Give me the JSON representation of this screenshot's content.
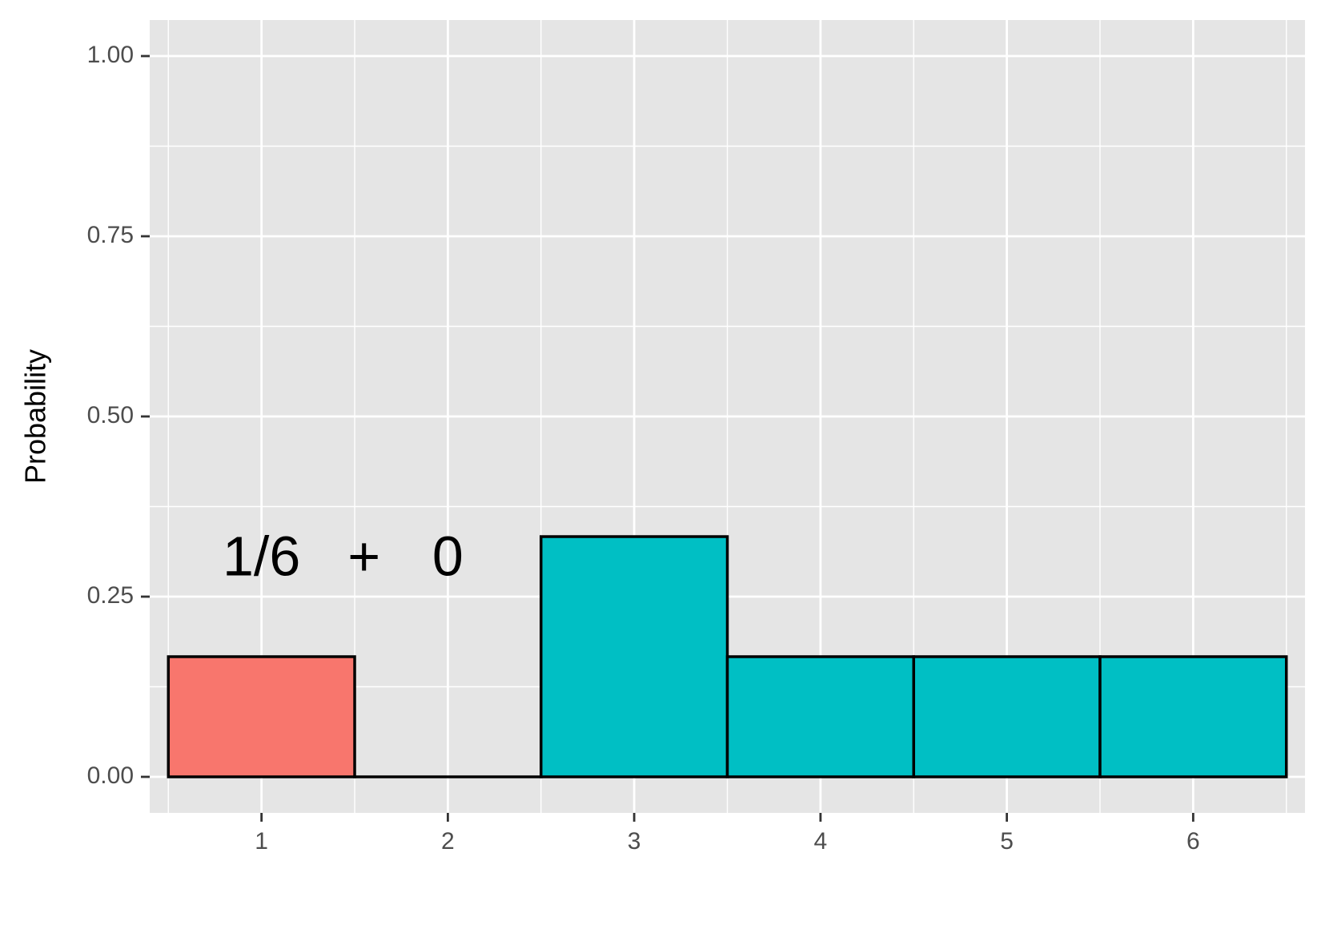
{
  "chart_data": {
    "type": "bar",
    "xlabel": "",
    "ylabel": "Probability",
    "categories": [
      "1",
      "2",
      "3",
      "4",
      "5",
      "6"
    ],
    "values": [
      0.1667,
      0,
      0.3333,
      0.1667,
      0.1667,
      0.1667
    ],
    "bar_colors": [
      "#F8766D",
      "#00BFC4",
      "#00BFC4",
      "#00BFC4",
      "#00BFC4",
      "#00BFC4"
    ],
    "ylim": [
      -0.05,
      1.05
    ],
    "y_ticks": [
      0.0,
      0.25,
      0.5,
      0.75,
      1.0
    ],
    "y_tick_labels": [
      "0.00",
      "0.25",
      "0.50",
      "0.75",
      "1.00"
    ],
    "x_tick_labels": [
      "1",
      "2",
      "3",
      "4",
      "5",
      "6"
    ],
    "annotations": [
      {
        "text": "1/6",
        "x": 1.0,
        "y": 0.3
      },
      {
        "text": "+",
        "x": 1.55,
        "y": 0.3
      },
      {
        "text": "0",
        "x": 2.0,
        "y": 0.3
      }
    ],
    "grid": true,
    "legend": "none",
    "panel_color": "#E5E5E5",
    "grid_color": "#FFFFFF",
    "bar_outline": "#000000"
  }
}
